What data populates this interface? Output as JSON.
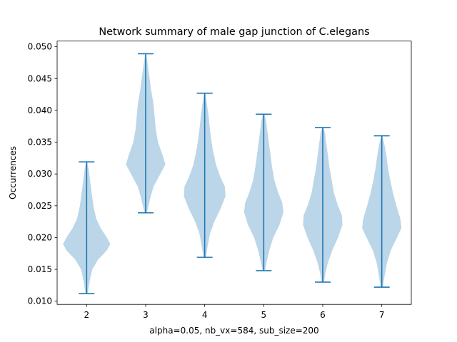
{
  "chart_data": {
    "type": "violin",
    "title": "Network summary of male gap junction of C.elegans",
    "xlabel": "alpha=0.05, nb_vx=584, sub_size=200",
    "ylabel": "Occurrences",
    "categories": [
      "2",
      "3",
      "4",
      "5",
      "6",
      "7"
    ],
    "x": [
      2,
      3,
      4,
      5,
      6,
      7
    ],
    "xlim": [
      1.5,
      7.5
    ],
    "ylim": [
      0.0095,
      0.0509
    ],
    "yticks": [
      0.01,
      0.015,
      0.02,
      0.025,
      0.03,
      0.035,
      0.04,
      0.045,
      0.05
    ],
    "ytick_labels": [
      "0.010",
      "0.015",
      "0.020",
      "0.025",
      "0.030",
      "0.035",
      "0.040",
      "0.045",
      "0.050"
    ],
    "series": [
      {
        "x": 2,
        "min": 0.0112,
        "max": 0.0319,
        "density": [
          [
            0.0112,
            0.02
          ],
          [
            0.013,
            0.05
          ],
          [
            0.015,
            0.1
          ],
          [
            0.0165,
            0.2
          ],
          [
            0.018,
            0.36
          ],
          [
            0.019,
            0.42
          ],
          [
            0.02,
            0.36
          ],
          [
            0.0215,
            0.25
          ],
          [
            0.023,
            0.17
          ],
          [
            0.025,
            0.12
          ],
          [
            0.027,
            0.09
          ],
          [
            0.029,
            0.06
          ],
          [
            0.0305,
            0.04
          ],
          [
            0.0319,
            0.01
          ]
        ]
      },
      {
        "x": 3,
        "min": 0.0239,
        "max": 0.0489,
        "density": [
          [
            0.0239,
            0.02
          ],
          [
            0.025,
            0.05
          ],
          [
            0.0265,
            0.09
          ],
          [
            0.028,
            0.14
          ],
          [
            0.03,
            0.26
          ],
          [
            0.0315,
            0.35
          ],
          [
            0.033,
            0.3
          ],
          [
            0.035,
            0.22
          ],
          [
            0.037,
            0.18
          ],
          [
            0.039,
            0.16
          ],
          [
            0.041,
            0.14
          ],
          [
            0.043,
            0.1
          ],
          [
            0.045,
            0.07
          ],
          [
            0.047,
            0.04
          ],
          [
            0.0489,
            0.01
          ]
        ]
      },
      {
        "x": 4,
        "min": 0.0169,
        "max": 0.0427,
        "density": [
          [
            0.0169,
            0.02
          ],
          [
            0.0185,
            0.05
          ],
          [
            0.0205,
            0.09
          ],
          [
            0.0225,
            0.17
          ],
          [
            0.0245,
            0.28
          ],
          [
            0.0265,
            0.37
          ],
          [
            0.028,
            0.36
          ],
          [
            0.0295,
            0.28
          ],
          [
            0.0315,
            0.2
          ],
          [
            0.034,
            0.14
          ],
          [
            0.0365,
            0.1
          ],
          [
            0.039,
            0.07
          ],
          [
            0.041,
            0.04
          ],
          [
            0.0427,
            0.01
          ]
        ]
      },
      {
        "x": 5,
        "min": 0.0148,
        "max": 0.0394,
        "density": [
          [
            0.0148,
            0.02
          ],
          [
            0.0165,
            0.06
          ],
          [
            0.018,
            0.1
          ],
          [
            0.02,
            0.17
          ],
          [
            0.022,
            0.28
          ],
          [
            0.024,
            0.35
          ],
          [
            0.0255,
            0.33
          ],
          [
            0.027,
            0.26
          ],
          [
            0.029,
            0.19
          ],
          [
            0.031,
            0.15
          ],
          [
            0.033,
            0.12
          ],
          [
            0.035,
            0.09
          ],
          [
            0.037,
            0.06
          ],
          [
            0.0385,
            0.04
          ],
          [
            0.0394,
            0.01
          ]
        ]
      },
      {
        "x": 6,
        "min": 0.013,
        "max": 0.0373,
        "density": [
          [
            0.013,
            0.02
          ],
          [
            0.0145,
            0.05
          ],
          [
            0.016,
            0.09
          ],
          [
            0.018,
            0.17
          ],
          [
            0.02,
            0.27
          ],
          [
            0.022,
            0.35
          ],
          [
            0.0235,
            0.34
          ],
          [
            0.025,
            0.27
          ],
          [
            0.027,
            0.2
          ],
          [
            0.029,
            0.16
          ],
          [
            0.031,
            0.12
          ],
          [
            0.033,
            0.09
          ],
          [
            0.035,
            0.06
          ],
          [
            0.0365,
            0.04
          ],
          [
            0.0373,
            0.01
          ]
        ]
      },
      {
        "x": 7,
        "min": 0.0122,
        "max": 0.036,
        "density": [
          [
            0.0122,
            0.02
          ],
          [
            0.014,
            0.05
          ],
          [
            0.016,
            0.09
          ],
          [
            0.018,
            0.16
          ],
          [
            0.02,
            0.27
          ],
          [
            0.0215,
            0.35
          ],
          [
            0.023,
            0.33
          ],
          [
            0.025,
            0.26
          ],
          [
            0.027,
            0.2
          ],
          [
            0.029,
            0.15
          ],
          [
            0.031,
            0.11
          ],
          [
            0.033,
            0.08
          ],
          [
            0.0345,
            0.05
          ],
          [
            0.036,
            0.01
          ]
        ]
      }
    ],
    "colors": {
      "fill": "#1f77b4",
      "fill_opacity": 0.3,
      "line": "#1f77b4"
    },
    "grid": false,
    "legend": "none"
  }
}
